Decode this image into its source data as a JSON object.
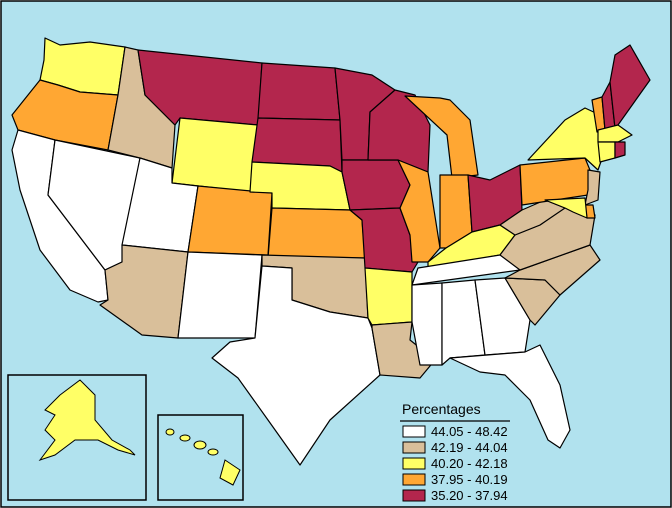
{
  "legend": {
    "title": "Percentages",
    "bins": [
      {
        "range": "44.05 - 48.42",
        "color": "#ffffff"
      },
      {
        "range": "42.19 - 44.04",
        "color": "#d9bf9a"
      },
      {
        "range": "40.20 - 42.18",
        "color": "#ffff66"
      },
      {
        "range": "37.95 - 40.19",
        "color": "#ffa733"
      },
      {
        "range": "35.20 - 37.94",
        "color": "#b3264d"
      }
    ]
  },
  "colors": {
    "ocean": "#b1e2ee",
    "border": "#000000"
  },
  "states": {
    "WA": 3,
    "OR": 4,
    "CA": 1,
    "NV": 1,
    "ID": 2,
    "MT": 5,
    "WY": 3,
    "UT": 1,
    "AZ": 2,
    "CO": 4,
    "NM": 1,
    "ND": 5,
    "SD": 5,
    "NE": 3,
    "KS": 4,
    "OK": 2,
    "TX": 1,
    "MN": 5,
    "IA": 5,
    "MO": 5,
    "AR": 3,
    "LA": 2,
    "WI": 5,
    "IL": 4,
    "MI": 4,
    "IN": 4,
    "OH": 5,
    "KY": 3,
    "TN": 1,
    "MS": 1,
    "AL": 1,
    "GA": 1,
    "FL": 1,
    "SC": 2,
    "NC": 2,
    "VA": 2,
    "WV": 2,
    "PA": 4,
    "NY": 3,
    "VT": 4,
    "NH": 5,
    "ME": 5,
    "MA": 3,
    "CT": 3,
    "RI": 5,
    "NJ": 2,
    "DE": 4,
    "MD": 3,
    "AK": 3,
    "HI": 3
  }
}
